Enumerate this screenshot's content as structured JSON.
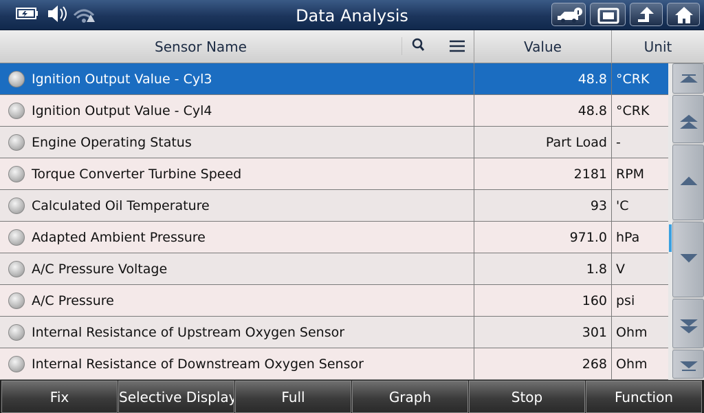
{
  "status_bar": {
    "title": "Data Analysis"
  },
  "table": {
    "columns": [
      "Sensor Name",
      "Value",
      "Unit"
    ],
    "rows": [
      [
        "Ignition Output Value - Cyl3",
        "48.8",
        "°CRK"
      ],
      [
        "Ignition Output Value - Cyl4",
        "48.8",
        "°CRK"
      ],
      [
        "Engine Operating Status",
        "Part Load",
        "-"
      ],
      [
        "Torque Converter Turbine Speed",
        "2181",
        "RPM"
      ],
      [
        "Calculated Oil Temperature",
        "93",
        "'C"
      ],
      [
        "Adapted Ambient Pressure",
        "971.0",
        "hPa"
      ],
      [
        "A/C Pressure Voltage",
        "1.8",
        "V"
      ],
      [
        "A/C Pressure",
        "160",
        "psi"
      ],
      [
        "Internal Resistance of Upstream Oxygen Sensor",
        "301",
        "Ohm"
      ],
      [
        "Internal Resistance of Downstream Oxygen Sensor",
        "268",
        "Ohm"
      ]
    ]
  },
  "toolbar": {
    "buttons": [
      "Fix",
      "Selective Display",
      "Full",
      "Graph",
      "Stop",
      "Function"
    ]
  }
}
